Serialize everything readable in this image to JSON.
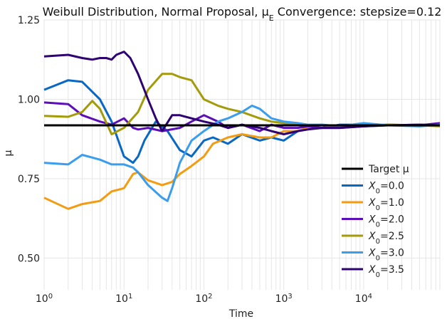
{
  "chart_data": {
    "type": "line",
    "title": "Weibull Distribution, Normal Proposal, μ_E Convergence: stepsize=0.12",
    "xlabel": "Time",
    "ylabel": "μ",
    "x_scale": "log",
    "xlim": [
      1,
      90000
    ],
    "ylim": [
      0.4,
      1.25
    ],
    "yticks": [
      0.5,
      0.75,
      1.0,
      1.25
    ],
    "ytick_labels": [
      "0.50",
      "0.75",
      "1.00",
      "1.25"
    ],
    "xticks": [
      1,
      10,
      100,
      1000,
      10000
    ],
    "xtick_labels": [
      {
        "base": "10",
        "exp": "0"
      },
      {
        "base": "10",
        "exp": "1"
      },
      {
        "base": "10",
        "exp": "2"
      },
      {
        "base": "10",
        "exp": "3"
      },
      {
        "base": "10",
        "exp": "4"
      }
    ],
    "grid": true,
    "legend_position": "lower-right",
    "target": {
      "name": "Target μ",
      "value": 0.918,
      "color": "#000000"
    },
    "series": [
      {
        "name_base": "X",
        "name_sub": "0",
        "name_value": "=0.0",
        "color": "#0868c4",
        "x": [
          1,
          2,
          3,
          5,
          7,
          10,
          13,
          15,
          18,
          25,
          35,
          50,
          70,
          100,
          130,
          200,
          300,
          500,
          700,
          1000,
          1500,
          2000,
          3000,
          5000,
          7000,
          10000,
          20000,
          50000,
          90000
        ],
        "y": [
          1.03,
          1.06,
          1.055,
          1.0,
          0.93,
          0.82,
          0.8,
          0.82,
          0.87,
          0.93,
          0.9,
          0.84,
          0.82,
          0.87,
          0.88,
          0.86,
          0.89,
          0.87,
          0.88,
          0.87,
          0.9,
          0.91,
          0.91,
          0.92,
          0.92,
          0.915,
          0.918,
          0.92,
          0.918
        ]
      },
      {
        "name_base": "X",
        "name_sub": "0",
        "name_value": "=1.0",
        "color": "#f39c12",
        "x": [
          1,
          2,
          3,
          5,
          7,
          10,
          13,
          15,
          20,
          30,
          40,
          50,
          70,
          100,
          130,
          200,
          300,
          500,
          700,
          1000,
          1500,
          2000,
          3000,
          5000,
          10000,
          20000,
          50000,
          90000
        ],
        "y": [
          0.69,
          0.655,
          0.67,
          0.68,
          0.71,
          0.72,
          0.765,
          0.77,
          0.745,
          0.73,
          0.74,
          0.765,
          0.79,
          0.82,
          0.86,
          0.88,
          0.89,
          0.88,
          0.88,
          0.9,
          0.9,
          0.91,
          0.91,
          0.915,
          0.92,
          0.918,
          0.92,
          0.918
        ]
      },
      {
        "name_base": "X",
        "name_sub": "0",
        "name_value": "=2.0",
        "color": "#5c0fb8",
        "x": [
          1,
          2,
          3,
          5,
          7,
          10,
          13,
          15,
          20,
          30,
          50,
          70,
          100,
          150,
          200,
          300,
          500,
          700,
          1000,
          1500,
          2000,
          3000,
          5000,
          10000,
          20000,
          50000,
          90000
        ],
        "y": [
          0.99,
          0.985,
          0.95,
          0.93,
          0.92,
          0.94,
          0.91,
          0.905,
          0.91,
          0.9,
          0.91,
          0.93,
          0.95,
          0.93,
          0.91,
          0.92,
          0.9,
          0.92,
          0.91,
          0.91,
          0.915,
          0.91,
          0.91,
          0.915,
          0.92,
          0.918,
          0.925
        ]
      },
      {
        "name_base": "X",
        "name_sub": "0",
        "name_value": "=2.5",
        "color": "#a39b0a",
        "x": [
          1,
          2,
          3,
          4,
          5,
          7,
          10,
          15,
          20,
          30,
          40,
          50,
          70,
          100,
          150,
          200,
          300,
          500,
          700,
          1000,
          1500,
          2000,
          3000,
          5000,
          10000,
          20000,
          50000,
          90000
        ],
        "y": [
          0.948,
          0.945,
          0.96,
          0.995,
          0.97,
          0.89,
          0.91,
          0.96,
          1.03,
          1.08,
          1.08,
          1.07,
          1.06,
          1.0,
          0.98,
          0.97,
          0.96,
          0.94,
          0.93,
          0.925,
          0.92,
          0.918,
          0.92,
          0.915,
          0.918,
          0.92,
          0.918,
          0.915
        ]
      },
      {
        "name_base": "X",
        "name_sub": "0",
        "name_value": "=3.0",
        "color": "#3a9ded",
        "x": [
          1,
          2,
          3,
          5,
          7,
          10,
          13,
          15,
          20,
          30,
          35,
          40,
          50,
          70,
          100,
          150,
          200,
          300,
          400,
          500,
          700,
          1000,
          1500,
          2000,
          3000,
          5000,
          10000,
          20000,
          50000,
          90000
        ],
        "y": [
          0.8,
          0.795,
          0.825,
          0.81,
          0.795,
          0.795,
          0.785,
          0.77,
          0.73,
          0.69,
          0.68,
          0.72,
          0.8,
          0.87,
          0.9,
          0.93,
          0.94,
          0.96,
          0.98,
          0.97,
          0.94,
          0.93,
          0.925,
          0.92,
          0.92,
          0.915,
          0.925,
          0.918,
          0.915,
          0.92
        ]
      },
      {
        "name_base": "X",
        "name_sub": "0",
        "name_value": "=3.5",
        "color": "#2e0270",
        "x": [
          1,
          2,
          3,
          4,
          5,
          6,
          7,
          8,
          10,
          12,
          15,
          20,
          25,
          30,
          40,
          50,
          70,
          100,
          150,
          200,
          300,
          500,
          700,
          1000,
          1500,
          2000,
          3000,
          5000,
          10000,
          20000,
          50000,
          90000
        ],
        "y": [
          1.135,
          1.14,
          1.13,
          1.125,
          1.13,
          1.13,
          1.125,
          1.14,
          1.15,
          1.13,
          1.08,
          1.0,
          0.94,
          0.9,
          0.95,
          0.95,
          0.94,
          0.93,
          0.92,
          0.91,
          0.92,
          0.91,
          0.9,
          0.89,
          0.9,
          0.905,
          0.91,
          0.91,
          0.915,
          0.918,
          0.92,
          0.918
        ]
      }
    ]
  }
}
